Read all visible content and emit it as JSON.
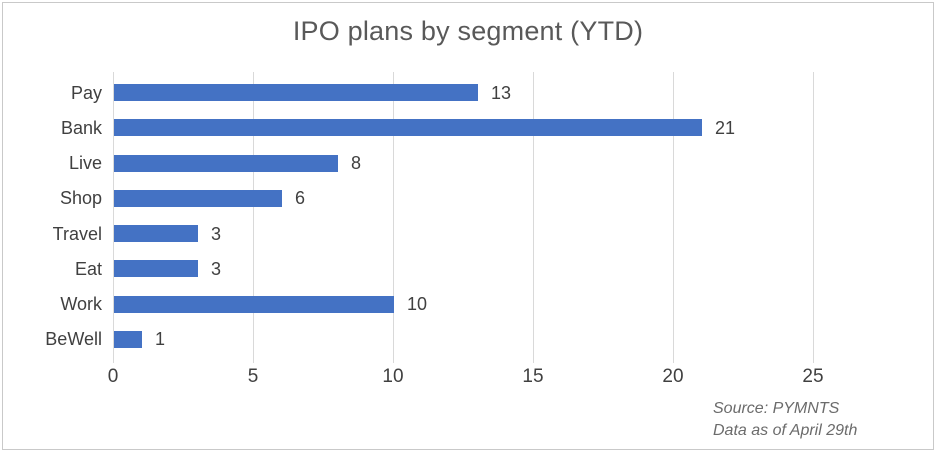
{
  "chart_data": {
    "type": "bar",
    "orientation": "horizontal",
    "title": "IPO plans by segment (YTD)",
    "categories": [
      "Pay",
      "Bank",
      "Live",
      "Shop",
      "Travel",
      "Eat",
      "Work",
      "BeWell"
    ],
    "values": [
      13,
      21,
      8,
      6,
      3,
      3,
      10,
      1
    ],
    "x_ticks": [
      0,
      5,
      10,
      15,
      20,
      25
    ],
    "xlim": [
      0,
      25
    ],
    "data_labels": true,
    "grid": "vertical",
    "legend": "none",
    "bar_color": "#4472c4",
    "gridline_color": "#d9d9d9",
    "title_color": "#595959",
    "label_color": "#404040"
  },
  "source_note": {
    "line1": "Source: PYMNTS",
    "line2": "Data as of April 29th"
  }
}
